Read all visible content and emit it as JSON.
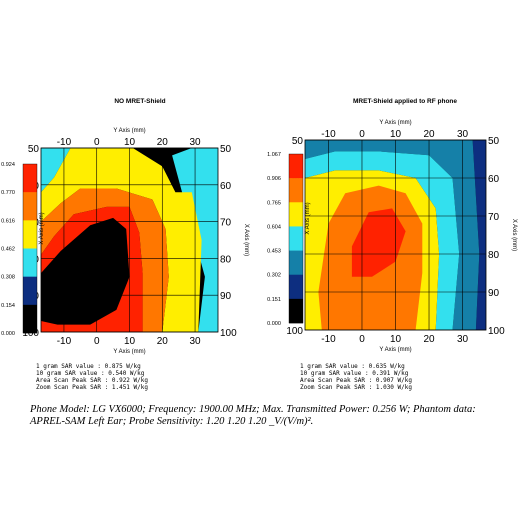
{
  "caption": {
    "line": "Phone Model: LG VX6000; Frequency: 1900.00 MHz; Max. Transmitted Power: 0.256 W; Phantom data: APREL-SAM     Left Ear; Probe Sensitivity: 1.20   1.20    1.20 _V/(V/m)²."
  },
  "chart_data": [
    {
      "type": "heatmap",
      "title": "NO MRET-Shield",
      "top_axis_label": "Y Axis (mm)",
      "bottom_axis_label": "Y Axis (mm)",
      "side_axis_label": "X Axis (mm)",
      "x_ticks": [
        "-10",
        "0",
        "10",
        "20",
        "30"
      ],
      "x_tick_values": [
        -10,
        0,
        10,
        20,
        30
      ],
      "y_ticks": [
        "50",
        "60",
        "70",
        "80",
        "90",
        "100"
      ],
      "y_tick_values": [
        50,
        60,
        70,
        80,
        90,
        100
      ],
      "xlim": [
        -17,
        37
      ],
      "ylim": [
        50,
        100
      ],
      "colorbar": {
        "labels": [
          "0.924",
          "0.770",
          "0.616",
          "0.462",
          "0.308",
          "0.154",
          "0.000"
        ],
        "colors": [
          "#ff2200",
          "#ff7700",
          "#ffee00",
          "#33e0ee",
          "#0d2e80",
          "#000000"
        ]
      },
      "zones": [
        {
          "level": 2,
          "pts": [
            [
              -17,
              50
            ],
            [
              -8,
              50
            ],
            [
              -13,
              58
            ],
            [
              -17,
              62
            ]
          ]
        },
        {
          "level": 2,
          "pts": [
            [
              23,
              52
            ],
            [
              29,
              50
            ],
            [
              37,
              50
            ],
            [
              37,
              100
            ],
            [
              31,
              100
            ],
            [
              33,
              85
            ]
          ]
        },
        {
          "level": 3,
          "pts": [
            [
              -17,
              62
            ],
            [
              -13,
              58
            ],
            [
              -8,
              50
            ],
            [
              11,
              50
            ],
            [
              20,
              55
            ],
            [
              24,
              62
            ],
            [
              29,
              62
            ],
            [
              32,
              75
            ],
            [
              31,
              100
            ],
            [
              20,
              100
            ],
            [
              22,
              85
            ],
            [
              21,
              72
            ],
            [
              17,
              64
            ],
            [
              6,
              61
            ],
            [
              -5,
              61
            ],
            [
              -11,
              65
            ],
            [
              -17,
              70
            ]
          ]
        },
        {
          "level": 4,
          "pts": [
            [
              -17,
              70
            ],
            [
              -11,
              65
            ],
            [
              -5,
              61
            ],
            [
              6,
              61
            ],
            [
              17,
              64
            ],
            [
              21,
              72
            ],
            [
              22,
              85
            ],
            [
              20,
              100
            ],
            [
              14,
              100
            ],
            [
              14,
              84
            ],
            [
              13,
              73
            ],
            [
              10,
              66
            ],
            [
              3,
              66
            ],
            [
              -7,
              68
            ],
            [
              -13,
              74
            ],
            [
              -17,
              79
            ]
          ]
        },
        {
          "level": 5,
          "pts": [
            [
              -17,
              79
            ],
            [
              -13,
              74
            ],
            [
              -7,
              68
            ],
            [
              3,
              66
            ],
            [
              10,
              66
            ],
            [
              13,
              73
            ],
            [
              14,
              84
            ],
            [
              14,
              100
            ],
            [
              -17,
              100
            ]
          ]
        },
        {
          "level": 6,
          "pts": [
            [
              -17,
              84
            ],
            [
              -11,
              78
            ],
            [
              -2,
              71
            ],
            [
              5,
              69
            ],
            [
              9,
              72
            ],
            [
              10,
              85
            ],
            [
              6,
              94
            ],
            [
              -2,
              98
            ],
            [
              -12,
              98
            ],
            [
              -17,
              97
            ]
          ]
        }
      ]
    },
    {
      "type": "heatmap",
      "title": "MRET-Shield applied to RF phone",
      "top_axis_label": "Y Axis (mm)",
      "bottom_axis_label": "Y Axis (mm)",
      "side_axis_label": "X Axis (mm)",
      "x_ticks": [
        "-10",
        "0",
        "10",
        "20",
        "30"
      ],
      "x_tick_values": [
        -10,
        0,
        10,
        20,
        30
      ],
      "y_ticks": [
        "50",
        "60",
        "70",
        "80",
        "90",
        "100"
      ],
      "y_tick_values": [
        50,
        60,
        70,
        80,
        90,
        100
      ],
      "xlim": [
        -17,
        37
      ],
      "ylim": [
        50,
        100
      ],
      "colorbar": {
        "labels": [
          "1.067",
          "0.906",
          "0.765",
          "0.604",
          "0.453",
          "0.302",
          "0.151",
          "0.000"
        ],
        "colors": [
          "#ff2200",
          "#ff7700",
          "#ffee00",
          "#33e0ee",
          "#1580a8",
          "#0d2e80",
          "#000000"
        ]
      },
      "zones": [
        {
          "level": 1,
          "pts": [
            [
              33,
              50
            ],
            [
              37,
              50
            ],
            [
              37,
              100
            ],
            [
              34,
              100
            ],
            [
              35,
              80
            ]
          ]
        },
        {
          "level": 2,
          "pts": [
            [
              -17,
              50
            ],
            [
              33,
              50
            ],
            [
              35,
              80
            ],
            [
              34,
              100
            ],
            [
              27,
              100
            ],
            [
              29,
              80
            ],
            [
              27,
              60
            ],
            [
              20,
              54
            ],
            [
              5,
              53
            ],
            [
              -8,
              53
            ],
            [
              -17,
              55
            ]
          ]
        },
        {
          "level": 3,
          "pts": [
            [
              -17,
              55
            ],
            [
              -8,
              53
            ],
            [
              5,
              53
            ],
            [
              20,
              54
            ],
            [
              27,
              60
            ],
            [
              29,
              80
            ],
            [
              27,
              100
            ],
            [
              22,
              100
            ],
            [
              23,
              80
            ],
            [
              22,
              68
            ],
            [
              16,
              60
            ],
            [
              5,
              58
            ],
            [
              -8,
              58
            ],
            [
              -17,
              60
            ]
          ]
        },
        {
          "level": 4,
          "pts": [
            [
              -17,
              60
            ],
            [
              -8,
              58
            ],
            [
              5,
              58
            ],
            [
              16,
              60
            ],
            [
              22,
              68
            ],
            [
              23,
              80
            ],
            [
              22,
              100
            ],
            [
              -17,
              100
            ]
          ]
        },
        {
          "level": 5,
          "pts": [
            [
              -10,
              72
            ],
            [
              -5,
              64
            ],
            [
              5,
              62
            ],
            [
              13,
              64
            ],
            [
              18,
              72
            ],
            [
              18,
              85
            ],
            [
              16,
              100
            ],
            [
              -12,
              100
            ],
            [
              -13,
              90
            ]
          ]
        },
        {
          "level": 6,
          "pts": [
            [
              -3,
              78
            ],
            [
              2,
              69
            ],
            [
              9,
              68
            ],
            [
              13,
              74
            ],
            [
              10,
              82
            ],
            [
              3,
              86
            ],
            [
              -3,
              86
            ]
          ]
        }
      ]
    }
  ],
  "readouts": [
    {
      "lines": [
        "1 gram SAR value    : 0.875 W/kg",
        "10 gram SAR value   : 0.540 W/kg",
        "Area Scan Peak SAR  : 0.922 W/kg",
        "Zoom Scan Peak SAR  : 1.451 W/kg"
      ]
    },
    {
      "lines": [
        "1 gram SAR value    : 0.635 W/kg",
        "10 gram SAR value   : 0.391 W/kg",
        "Area Scan Peak SAR  : 0.907 W/kg",
        "Zoom Scan Peak SAR  : 1.030 W/kg"
      ]
    }
  ]
}
